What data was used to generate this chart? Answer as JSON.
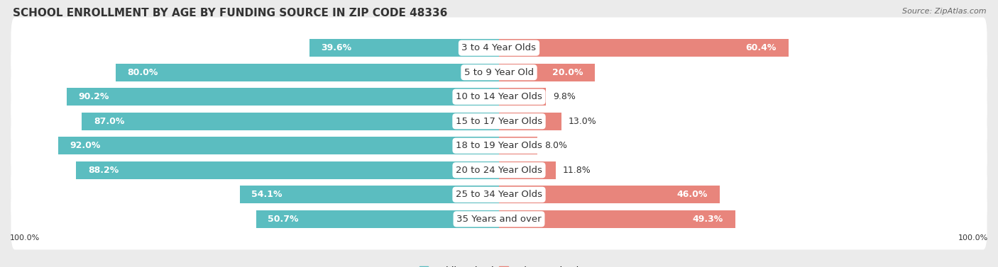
{
  "title": "SCHOOL ENROLLMENT BY AGE BY FUNDING SOURCE IN ZIP CODE 48336",
  "source": "Source: ZipAtlas.com",
  "categories": [
    "3 to 4 Year Olds",
    "5 to 9 Year Old",
    "10 to 14 Year Olds",
    "15 to 17 Year Olds",
    "18 to 19 Year Olds",
    "20 to 24 Year Olds",
    "25 to 34 Year Olds",
    "35 Years and over"
  ],
  "public_pct": [
    39.6,
    80.0,
    90.2,
    87.0,
    92.0,
    88.2,
    54.1,
    50.7
  ],
  "private_pct": [
    60.4,
    20.0,
    9.8,
    13.0,
    8.0,
    11.8,
    46.0,
    49.3
  ],
  "public_color": "#5BBDC0",
  "private_color": "#E8857C",
  "bar_height": 0.72,
  "background_color": "#EBEBEB",
  "row_bg_color": "#FFFFFF",
  "title_fontsize": 11,
  "label_fontsize": 9,
  "cat_fontsize": 9.5,
  "legend_fontsize": 9,
  "axis_label_fontsize": 8,
  "xlim": 100
}
